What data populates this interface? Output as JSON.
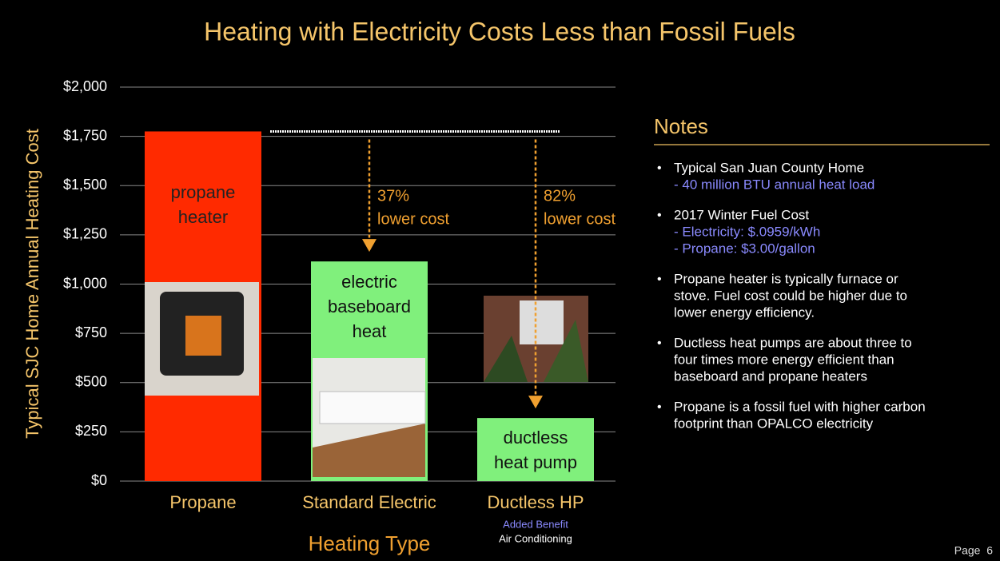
{
  "chart_data": {
    "type": "bar",
    "title": "Heating with Electricity Costs Less than Fossil Fuels",
    "categories": [
      "Propane",
      "Standard Electric",
      "Ductless HP"
    ],
    "values": [
      1775,
      1115,
      320
    ],
    "colors": [
      "#ff2a00",
      "#80f07c",
      "#80f07c"
    ],
    "bar_labels": [
      [
        "propane",
        "heater"
      ],
      [
        "electric",
        "baseboard",
        "heat"
      ],
      [
        "ductless",
        "heat pump"
      ]
    ],
    "annotations": [
      [
        "37%",
        "lower cost"
      ],
      [
        "82%",
        "lower cost"
      ]
    ],
    "xlabel": "Heating Type",
    "ylabel": "Typical SJC Home Annual Heating Cost",
    "category_notes": [
      "Added Benefit",
      "Air Conditioning"
    ],
    "ylim": [
      0,
      2000
    ],
    "yticks": [
      {
        "value": 0,
        "label": "$0"
      },
      {
        "value": 250,
        "label": "$250"
      },
      {
        "value": 500,
        "label": "$500"
      },
      {
        "value": 750,
        "label": "$750"
      },
      {
        "value": 1000,
        "label": "$1,000"
      },
      {
        "value": 1250,
        "label": "$1,250"
      },
      {
        "value": 1500,
        "label": "$1,500"
      },
      {
        "value": 1750,
        "label": "$1,750"
      },
      {
        "value": 2000,
        "label": "$2,000"
      }
    ],
    "grid": true
  },
  "notes": {
    "title": "Notes",
    "items": [
      {
        "lines": [
          "Typical San Juan County Home"
        ],
        "sub": [
          "- 40 million BTU annual heat load"
        ]
      },
      {
        "lines": [
          "2017 Winter Fuel Cost"
        ],
        "sub": [
          "- Electricity:  $.0959/kWh",
          "- Propane:  $3.00/gallon"
        ]
      },
      {
        "lines": [
          "Propane heater is typically furnace or",
          "stove. Fuel cost could be higher due to",
          "lower energy efficiency."
        ],
        "sub": []
      },
      {
        "lines": [
          "Ductless heat pumps are about three to",
          "four times more energy efficient than",
          "baseboard and propane heaters"
        ],
        "sub": []
      },
      {
        "lines": [
          "Propane is a fossil fuel with higher carbon",
          "footprint than OPALCO electricity"
        ],
        "sub": []
      }
    ]
  },
  "footer": {
    "page": "Page  6"
  }
}
